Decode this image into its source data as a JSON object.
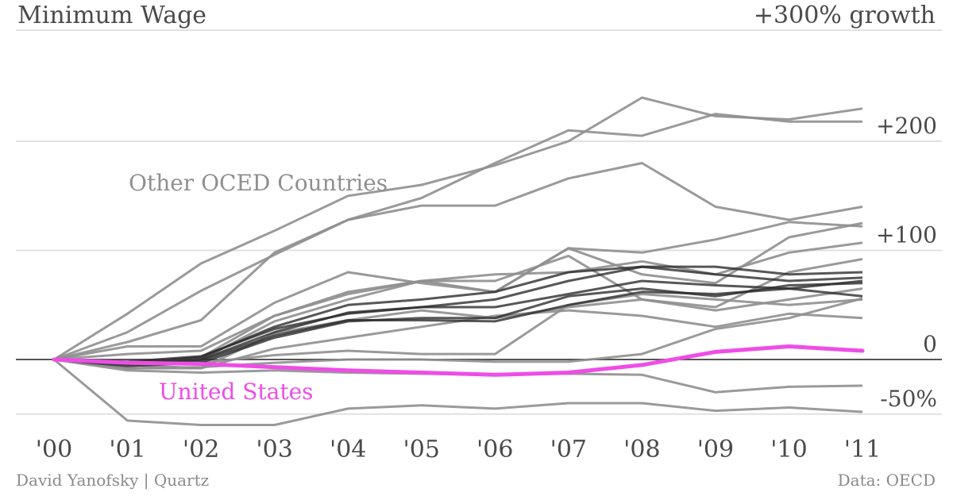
{
  "header": {
    "title": "Minimum Wage",
    "top_label": "+300% growth"
  },
  "footer": {
    "credit": "David Yanofsky | Quartz",
    "source": "Data: OECD"
  },
  "annotations": {
    "other_countries": "Other OCED Countries",
    "united_states": "United States"
  },
  "colors": {
    "highlight": "#ee4de6",
    "others": "#8f8f8f",
    "others_dark": "#2d2d2d",
    "grid": "#e1e1e1",
    "zero": "#555555",
    "text": "#4a4a4a"
  },
  "chart_data": {
    "type": "line",
    "title": "Minimum Wage",
    "xlabel": "",
    "ylabel": "",
    "x": [
      "'00",
      "'01",
      "'02",
      "'03",
      "'04",
      "'05",
      "'06",
      "'07",
      "'08",
      "'09",
      "'10",
      "'11"
    ],
    "ylim": [
      -60,
      300
    ],
    "y_ticks": [
      {
        "value": 200,
        "label": "+200"
      },
      {
        "value": 100,
        "label": "+100"
      },
      {
        "value": 0,
        "label": "0"
      },
      {
        "value": -50,
        "label": "-50%"
      }
    ],
    "grid": true,
    "highlight": {
      "name": "United States",
      "values": [
        0,
        -3,
        -4,
        -7,
        -10,
        -12,
        -14,
        -12,
        -5,
        7,
        12,
        8
      ]
    },
    "series_light": [
      {
        "values": [
          0,
          42,
          88,
          118,
          150,
          160,
          178,
          200,
          240,
          223,
          220,
          230
        ]
      },
      {
        "values": [
          0,
          25,
          63,
          96,
          128,
          141,
          141,
          166,
          180,
          140,
          128,
          140
        ]
      },
      {
        "values": [
          0,
          16,
          36,
          98,
          128,
          148,
          180,
          210,
          205,
          225,
          218,
          218
        ]
      },
      {
        "values": [
          0,
          12,
          12,
          52,
          80,
          70,
          62,
          102,
          98,
          110,
          126,
          122
        ]
      },
      {
        "values": [
          0,
          5,
          8,
          40,
          60,
          72,
          62,
          102,
          78,
          70,
          112,
          125
        ]
      },
      {
        "values": [
          0,
          -3,
          2,
          40,
          62,
          72,
          78,
          80,
          90,
          78,
          98,
          107
        ]
      },
      {
        "values": [
          0,
          -5,
          0,
          35,
          55,
          72,
          72,
          95,
          55,
          48,
          80,
          92
        ]
      },
      {
        "values": [
          0,
          -8,
          -8,
          24,
          36,
          45,
          38,
          48,
          55,
          45,
          55,
          65
        ]
      },
      {
        "values": [
          0,
          -5,
          -8,
          10,
          20,
          30,
          40,
          45,
          40,
          30,
          42,
          38
        ]
      },
      {
        "values": [
          0,
          -3,
          -3,
          4,
          8,
          5,
          5,
          50,
          60,
          55,
          50,
          55
        ]
      },
      {
        "values": [
          0,
          -8,
          -7,
          -3,
          0,
          0,
          -2,
          -2,
          5,
          28,
          38,
          56
        ]
      },
      {
        "values": [
          0,
          -10,
          -12,
          -10,
          -12,
          -13,
          -14,
          -13,
          -14,
          -30,
          -25,
          -24
        ]
      },
      {
        "values": [
          0,
          -56,
          -60,
          -60,
          -45,
          -42,
          -45,
          -40,
          -40,
          -47,
          -44,
          -48
        ]
      }
    ],
    "series_dark": [
      {
        "values": [
          0,
          -3,
          2,
          30,
          50,
          55,
          62,
          80,
          85,
          78,
          72,
          75
        ]
      },
      {
        "values": [
          0,
          -4,
          0,
          25,
          43,
          48,
          55,
          72,
          85,
          85,
          78,
          80
        ]
      },
      {
        "values": [
          0,
          -2,
          3,
          28,
          42,
          48,
          48,
          60,
          72,
          68,
          65,
          72
        ]
      },
      {
        "values": [
          0,
          -6,
          -3,
          20,
          35,
          38,
          38,
          58,
          65,
          58,
          68,
          70
        ]
      },
      {
        "values": [
          0,
          -4,
          -1,
          22,
          36,
          36,
          35,
          50,
          62,
          60,
          65,
          58
        ]
      }
    ]
  }
}
